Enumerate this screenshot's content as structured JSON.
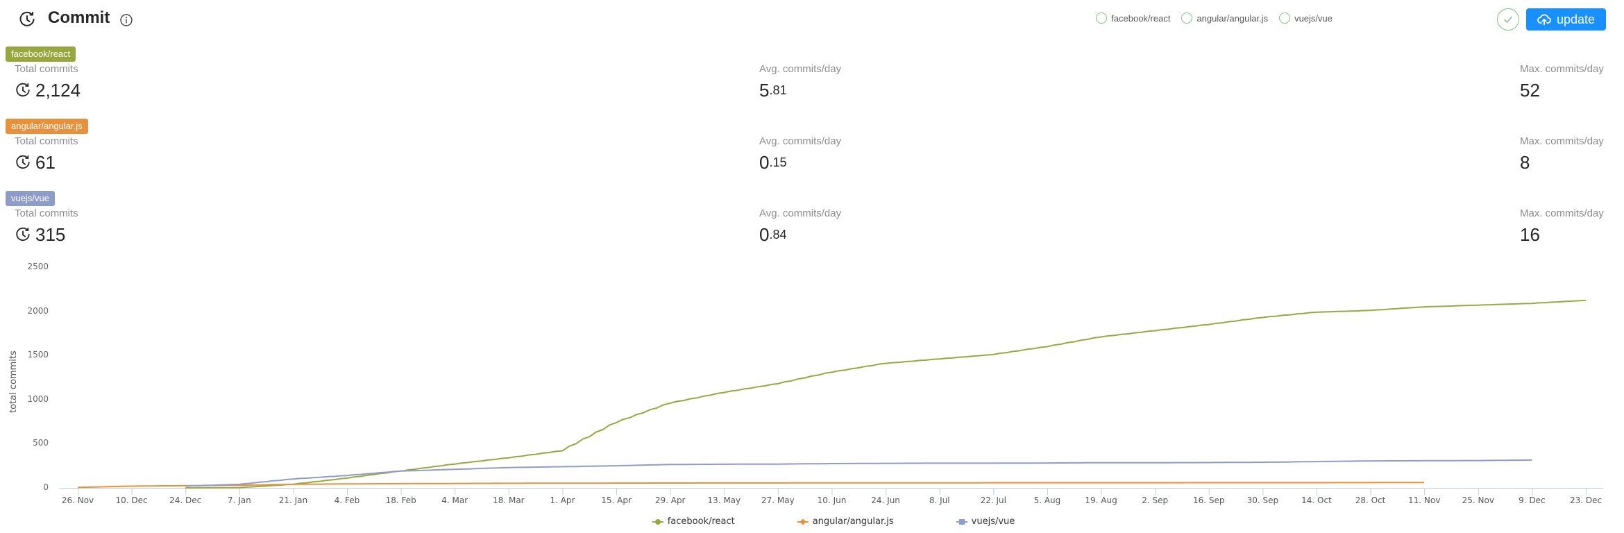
{
  "header": {
    "title": "Commit",
    "icon": "clock-history-icon",
    "info_icon": "info-circle-icon",
    "repo_toggles": [
      {
        "label": "facebook/react",
        "checked": false
      },
      {
        "label": "angular/angular.js",
        "checked": false
      },
      {
        "label": "vuejs/vue",
        "checked": false
      }
    ],
    "confirm_icon": "check-icon",
    "update_label": "update",
    "update_icon": "cloud-upload-icon",
    "update_color": "#1890ff"
  },
  "repos": [
    {
      "name": "facebook/react",
      "color": "#98a83f",
      "total_label": "Total commits",
      "total_value": "2,124",
      "avg_label": "Avg. commits/day",
      "avg_int": "5",
      "avg_dec": ".81",
      "max_label": "Max. commits/day",
      "max_value": "52"
    },
    {
      "name": "angular/angular.js",
      "color": "#e8903a",
      "total_label": "Total commits",
      "total_value": "61",
      "avg_label": "Avg. commits/day",
      "avg_int": "0",
      "avg_dec": ".15",
      "max_label": "Max. commits/day",
      "max_value": "8"
    },
    {
      "name": "vuejs/vue",
      "color": "#8d9cc8",
      "total_label": "Total commits",
      "total_value": "315",
      "avg_label": "Avg. commits/day",
      "avg_int": "0",
      "avg_dec": ".84",
      "max_label": "Max. commits/day",
      "max_value": "16"
    }
  ],
  "chart_data": {
    "type": "line",
    "title": "",
    "xlabel": "",
    "ylabel": "total commits",
    "ylim": [
      0,
      2500
    ],
    "yticks": [
      0,
      500,
      1000,
      1500,
      2000,
      2500
    ],
    "grid": false,
    "legend_position": "bottom",
    "categories": [
      "26. Nov",
      "10. Dec",
      "24. Dec",
      "7. Jan",
      "21. Jan",
      "4. Feb",
      "18. Feb",
      "4. Mar",
      "18. Mar",
      "1. Apr",
      "15. Apr",
      "29. Apr",
      "13. May",
      "27. May",
      "10. Jun",
      "24. Jun",
      "8. Jul",
      "22. Jul",
      "5. Aug",
      "19. Aug",
      "2. Sep",
      "16. Sep",
      "30. Sep",
      "14. Oct",
      "28. Oct",
      "11. Nov",
      "25. Nov",
      "9. Dec",
      "23. Dec"
    ],
    "series": [
      {
        "name": "facebook/react",
        "color": "#98a83f",
        "marker": "circle",
        "values": [
          null,
          null,
          0,
          2,
          40,
          110,
          190,
          270,
          340,
          420,
          740,
          960,
          1080,
          1180,
          1310,
          1410,
          1460,
          1510,
          1600,
          1710,
          1780,
          1850,
          1930,
          1990,
          2010,
          2050,
          2070,
          2090,
          2124
        ]
      },
      {
        "name": "angular/angular.js",
        "color": "#e8903a",
        "marker": "diamond",
        "values": [
          5,
          20,
          25,
          30,
          40,
          45,
          48,
          50,
          52,
          53,
          54,
          55,
          56,
          56,
          57,
          57,
          57,
          58,
          58,
          58,
          58,
          59,
          59,
          59,
          60,
          61,
          null,
          null,
          null
        ]
      },
      {
        "name": "vuejs/vue",
        "color": "#8d9cc8",
        "marker": "square",
        "values": [
          null,
          null,
          20,
          40,
          100,
          140,
          190,
          210,
          230,
          240,
          250,
          265,
          268,
          270,
          275,
          278,
          280,
          280,
          282,
          285,
          285,
          287,
          290,
          298,
          305,
          308,
          310,
          315,
          null
        ]
      }
    ]
  }
}
